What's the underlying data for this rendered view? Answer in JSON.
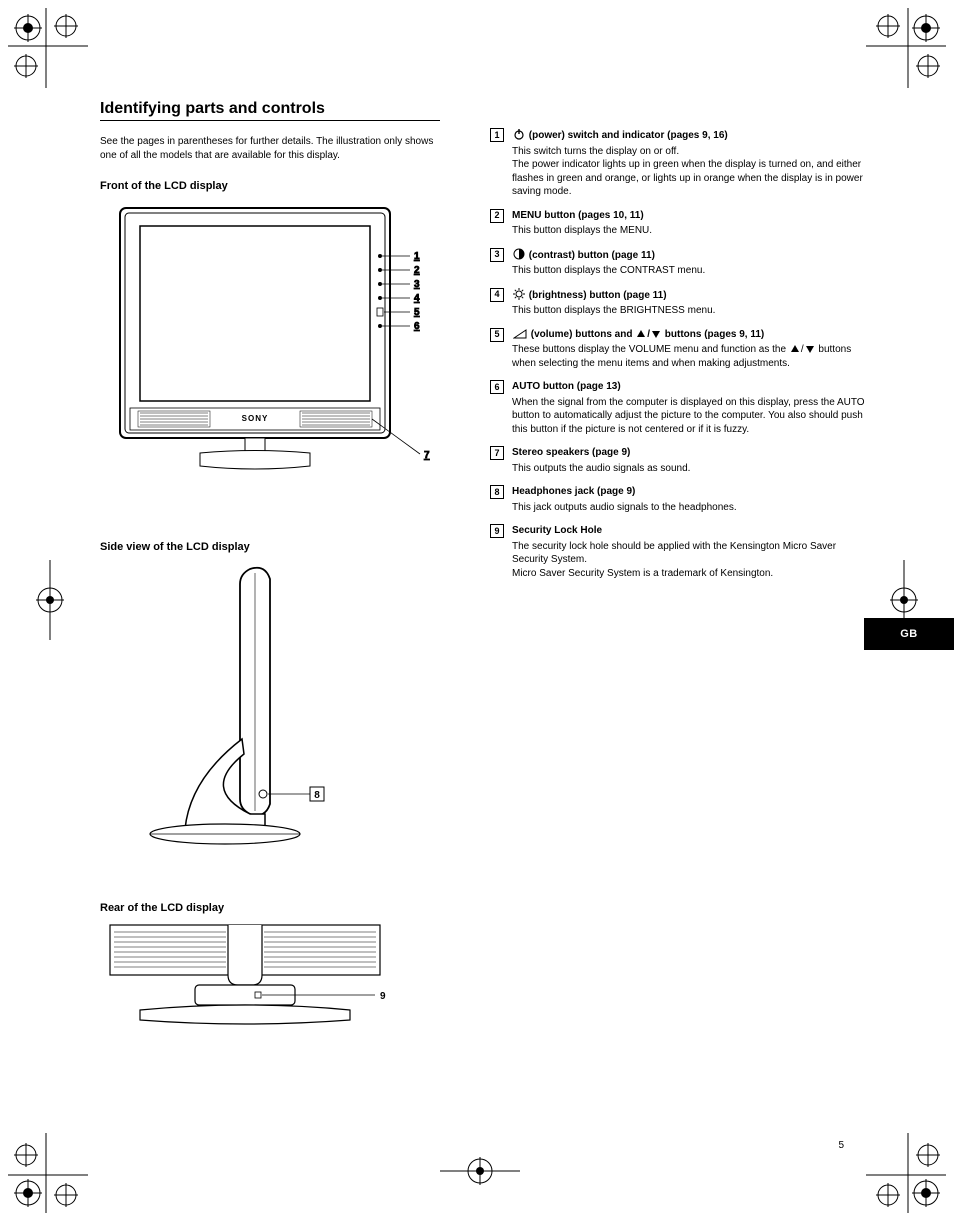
{
  "heading": "Identifying parts and controls",
  "intro": "See the pages in parentheses for further details. The illustration only shows one of all the models that are available for this display.",
  "figures": {
    "front": {
      "label": "Front of the LCD display",
      "brand": "SONY"
    },
    "side": {
      "label": "Side view of the LCD display"
    },
    "rear": {
      "label": "Rear of the LCD display"
    }
  },
  "items": [
    {
      "num": "1",
      "icon": "power",
      "title": "(power) switch and indicator (pages 9, 16)",
      "desc": "This switch turns the display on or off.\nThe power indicator lights up in green when the display is turned on, and either flashes in green and orange, or lights up in orange when the display is in power saving mode."
    },
    {
      "num": "2",
      "icon": null,
      "title": "MENU button (pages 10, 11)",
      "desc": "This button displays the MENU."
    },
    {
      "num": "3",
      "icon": "contrast",
      "title": "(contrast) button (page 11)",
      "desc": "This button displays the CONTRAST menu."
    },
    {
      "num": "4",
      "icon": "brightness",
      "title": "(brightness) button (page 11)",
      "desc": "This button displays the BRIGHTNESS menu."
    },
    {
      "num": "5",
      "icon": "volume",
      "title": "(volume) buttons and ↑/↓ buttons (pages 9, 11)",
      "desc": "These buttons display the VOLUME menu and function as the ↑/↓ buttons when selecting the menu items and when making adjustments."
    },
    {
      "num": "6",
      "icon": null,
      "title": "AUTO button (page 13)",
      "desc": "When the signal from the computer is displayed on this display, press the AUTO button to automatically adjust the picture to the computer. You also should push this button if the picture is not centered or if it is fuzzy."
    },
    {
      "num": "7",
      "icon": null,
      "title": "Stereo speakers (page 9)",
      "desc": "This outputs the audio signals as sound."
    },
    {
      "num": "8",
      "icon": null,
      "title": "Headphones jack (page 9)",
      "desc": "This jack outputs audio signals to the headphones."
    },
    {
      "num": "9",
      "icon": null,
      "title": "Security Lock Hole",
      "desc": "The security lock hole should be applied with the Kensington Micro Saver Security System.\nMicro Saver Security System is a trademark of Kensington."
    }
  ],
  "langTab": "GB",
  "pageNum": "5",
  "colors": {
    "black": "#000000",
    "white": "#ffffff"
  }
}
